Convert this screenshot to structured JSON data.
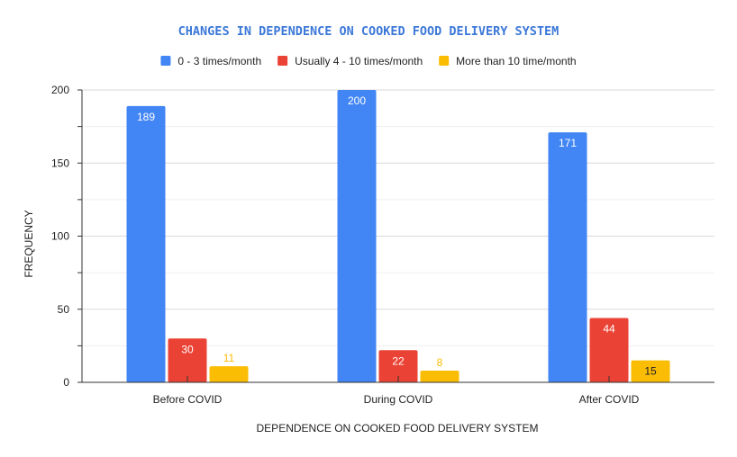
{
  "chart_data": {
    "type": "bar",
    "title": "CHANGES IN DEPENDENCE ON COOKED FOOD DELIVERY SYSTEM",
    "xlabel": "DEPENDENCE ON COOKED FOOD DELIVERY SYSTEM",
    "ylabel": "FREQUENCY",
    "categories": [
      "Before COVID",
      "During COVID",
      "After COVID"
    ],
    "series": [
      {
        "name": "0 - 3 times/month",
        "color": "#4285f4",
        "values": [
          189,
          200,
          171
        ]
      },
      {
        "name": "Usually 4 - 10 times/month",
        "color": "#ea4335",
        "values": [
          30,
          22,
          44
        ]
      },
      {
        "name": "More than 10 time/month",
        "color": "#fbbc04",
        "values": [
          11,
          8,
          15
        ]
      }
    ],
    "ylim": [
      0,
      200
    ],
    "yticks": [
      0,
      50,
      100,
      150,
      200
    ],
    "grid": true,
    "legend_position": "top"
  }
}
